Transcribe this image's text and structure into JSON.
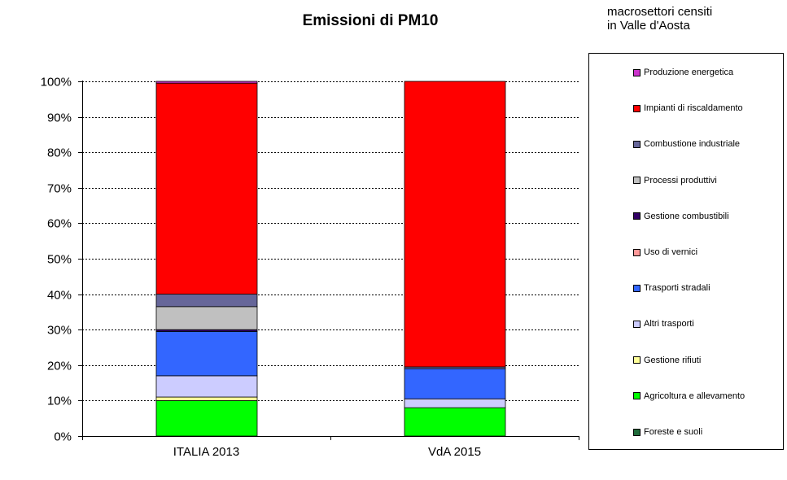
{
  "chart_data": {
    "type": "bar",
    "stacked": true,
    "title": "Emissioni  di PM10",
    "categories": [
      "ITALIA 2013",
      "VdA 2015"
    ],
    "ylim": [
      0,
      100
    ],
    "yticks": [
      "0%",
      "10%",
      "20%",
      "30%",
      "40%",
      "50%",
      "60%",
      "70%",
      "80%",
      "90%",
      "100%"
    ],
    "yticks_values": [
      0,
      10,
      20,
      30,
      40,
      50,
      60,
      70,
      80,
      90,
      100
    ],
    "grid": true,
    "legend_title": [
      "macrosettori censiti",
      "in Valle d'Aosta"
    ],
    "legend_position": "right",
    "series": [
      {
        "name": "Foreste e suoli",
        "color": "#1f6b3a",
        "values": [
          0,
          0
        ]
      },
      {
        "name": "Agricoltura e allevamento",
        "color": "#00ff00",
        "values": [
          10,
          8
        ]
      },
      {
        "name": "Gestione rifiuti",
        "color": "#ffff99",
        "values": [
          1,
          0
        ]
      },
      {
        "name": "Altri trasporti",
        "color": "#ccccff",
        "values": [
          6,
          2.5
        ]
      },
      {
        "name": "Trasporti stradali",
        "color": "#3366ff",
        "values": [
          12.5,
          8.5
        ]
      },
      {
        "name": "Uso di vernici",
        "color": "#ff9999",
        "values": [
          0,
          0
        ]
      },
      {
        "name": "Gestione combustibili",
        "color": "#330066",
        "values": [
          0.5,
          0
        ]
      },
      {
        "name": "Processi produttivi",
        "color": "#c0c0c0",
        "values": [
          6.5,
          0
        ]
      },
      {
        "name": "Combustione industriale",
        "color": "#666699",
        "values": [
          3.5,
          0.5
        ]
      },
      {
        "name": "Impianti di riscaldamento",
        "color": "#ff0000",
        "values": [
          59.5,
          80.5
        ]
      },
      {
        "name": "Produzione energetica",
        "color": "#cc33cc",
        "values": [
          0.5,
          0
        ]
      }
    ]
  }
}
